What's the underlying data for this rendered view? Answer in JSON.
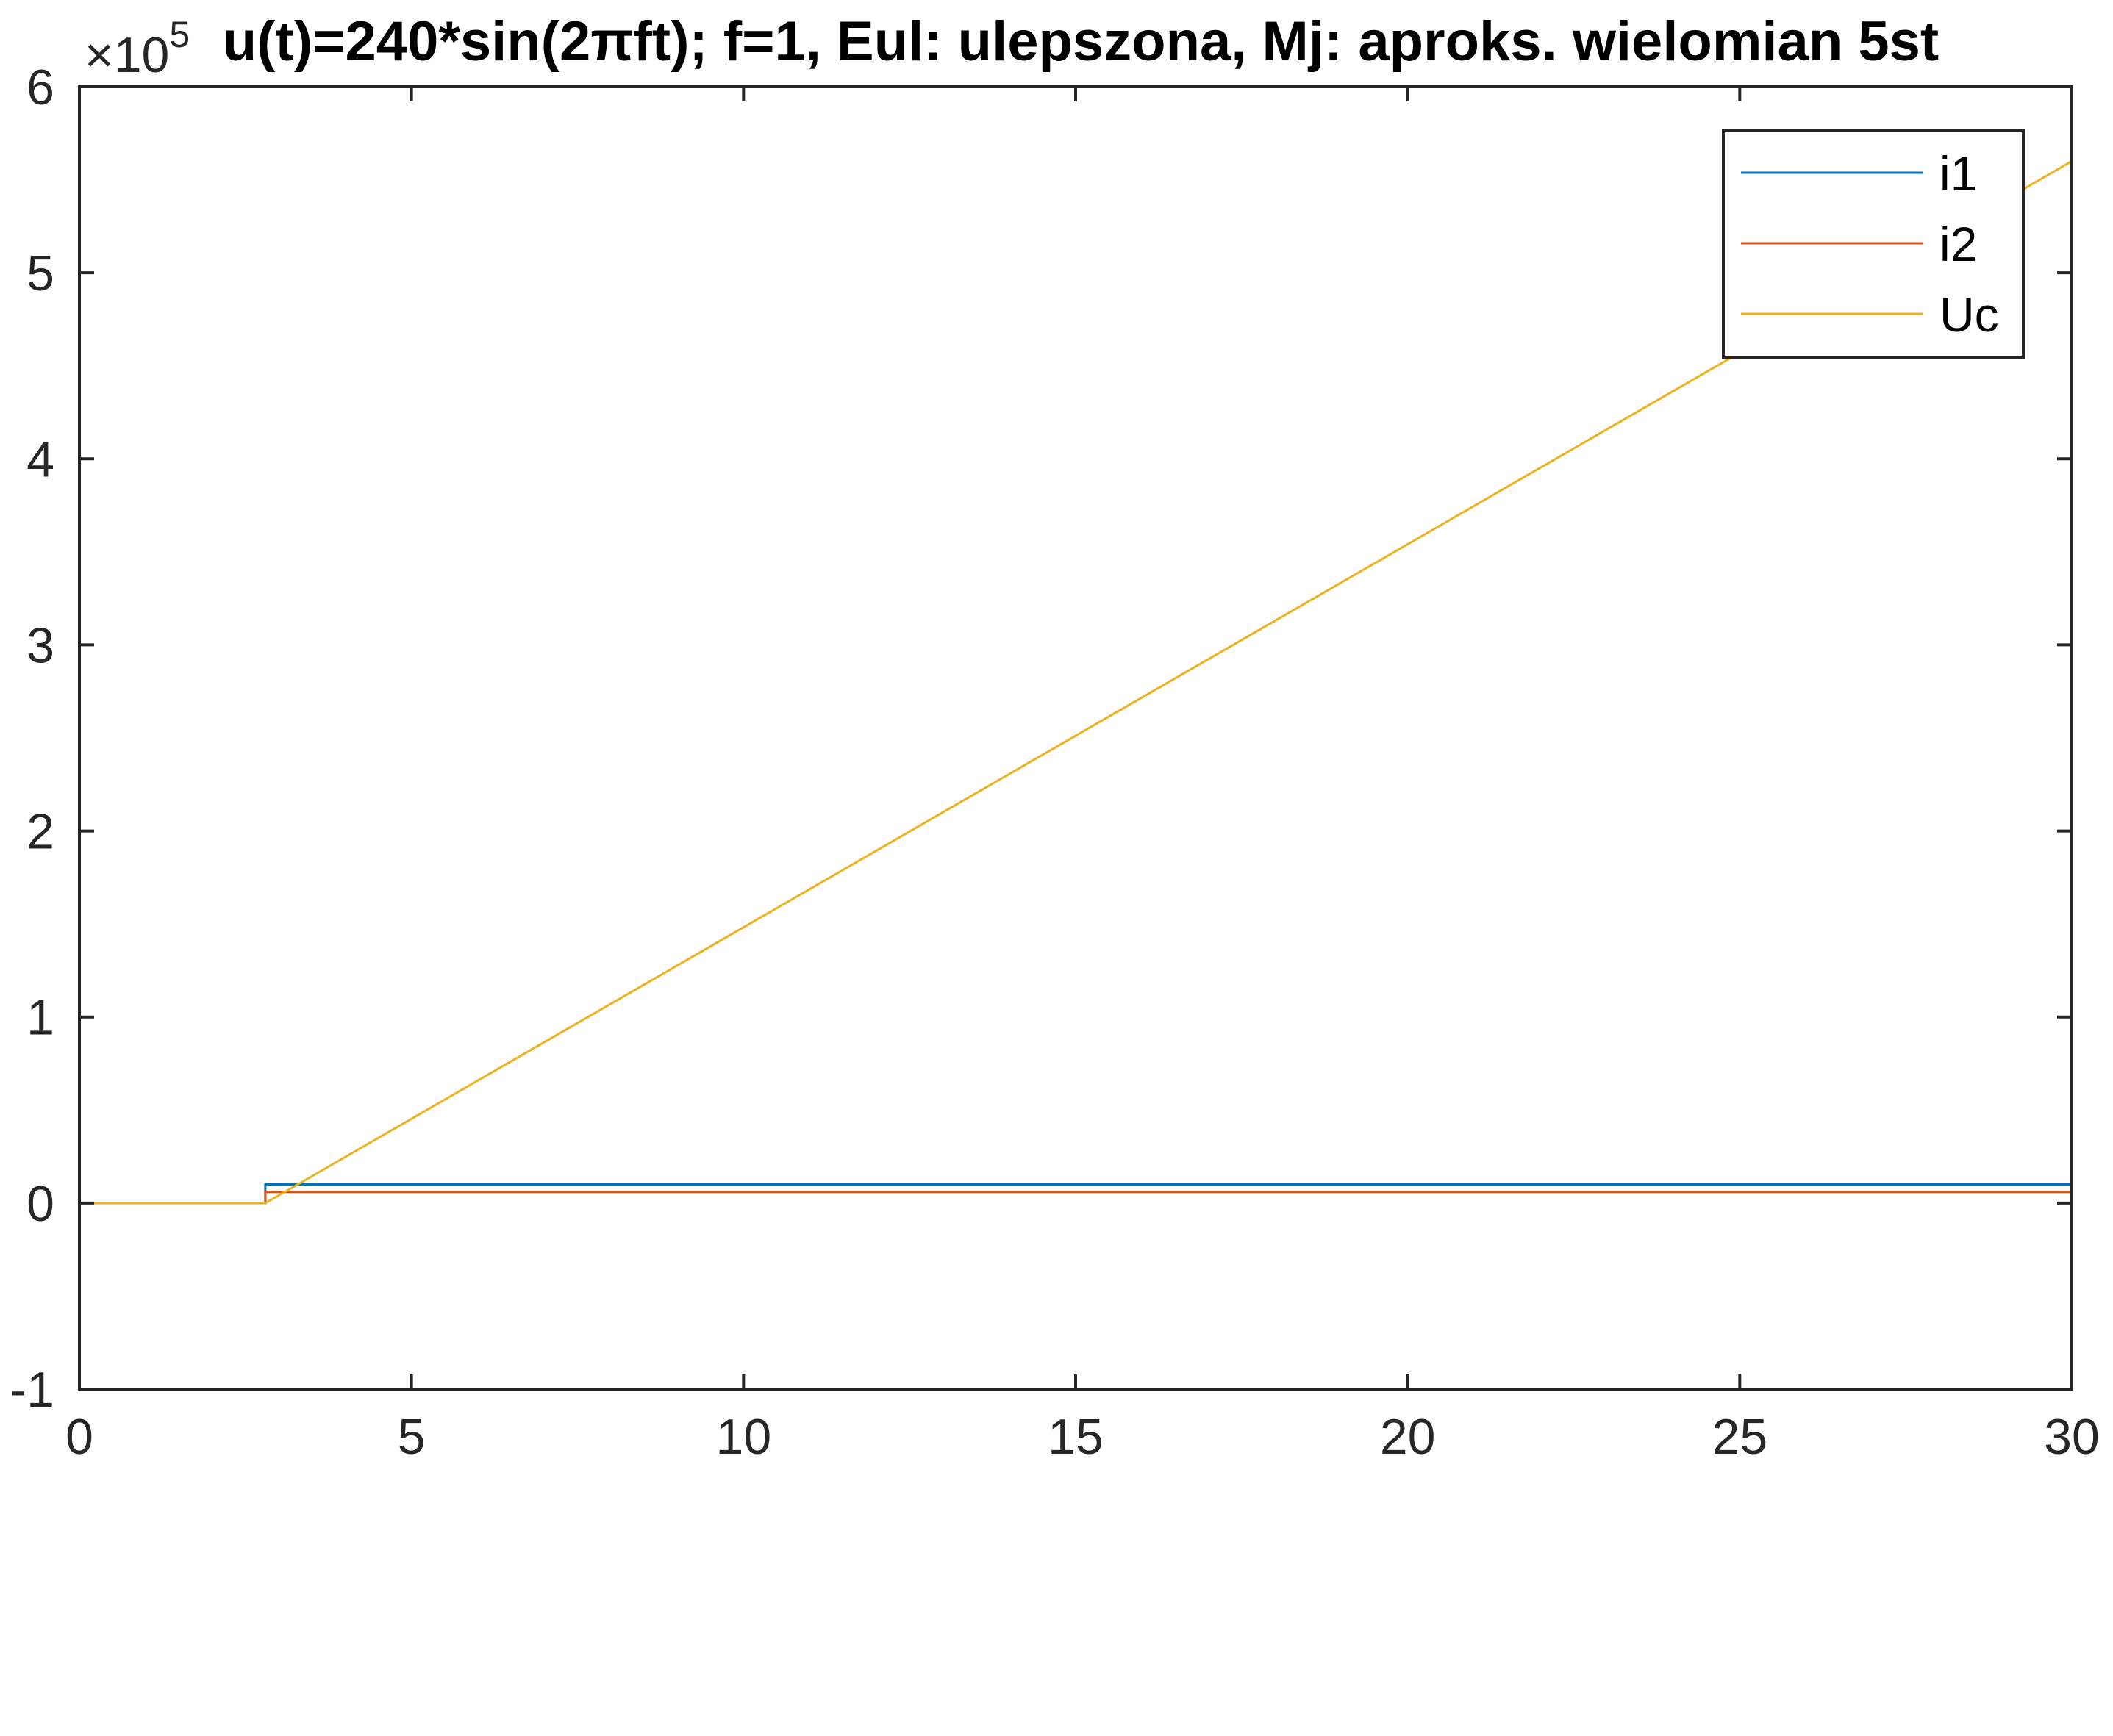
{
  "chart_data": {
    "type": "line",
    "title": "u(t)=240*sin(2πft); f=1, Eul: ulepszona, Mj: aproks. wielomian 5st",
    "y_exponent_label": "×10",
    "y_exponent_power": "5",
    "xlabel": "",
    "ylabel": "",
    "xlim": [
      0,
      30
    ],
    "ylim": [
      -1,
      6
    ],
    "y_scale_factor": 100000,
    "x_ticks": [
      0,
      5,
      10,
      15,
      20,
      25,
      30
    ],
    "x_tick_labels": [
      "0",
      "5",
      "10",
      "15",
      "20",
      "25",
      "30"
    ],
    "y_ticks": [
      -1,
      0,
      1,
      2,
      3,
      4,
      5,
      6
    ],
    "y_tick_labels": [
      "-1",
      "0",
      "1",
      "2",
      "3",
      "4",
      "5",
      "6"
    ],
    "grid": false,
    "legend_position": "top-right",
    "series": [
      {
        "name": "i1",
        "color": "#0072BD",
        "x": [
          0,
          2.8,
          2.8,
          30
        ],
        "y": [
          0,
          0,
          0.1,
          0.1
        ]
      },
      {
        "name": "i2",
        "color": "#D95319",
        "x": [
          0,
          2.8,
          2.8,
          30
        ],
        "y": [
          0,
          0,
          0.06,
          0.06
        ]
      },
      {
        "name": "Uc",
        "color": "#EDB120",
        "x": [
          0,
          2.8,
          30
        ],
        "y": [
          0,
          0,
          5.6
        ]
      }
    ]
  }
}
